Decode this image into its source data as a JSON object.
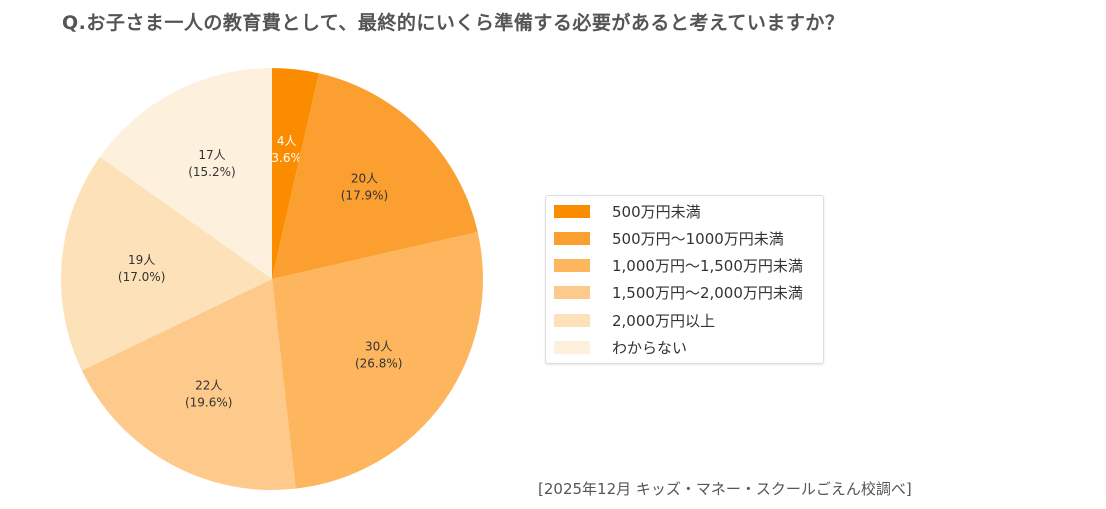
{
  "title": "Q.お子さま一人の教育費として、最終的にいくら準備する必要があると考えていますか？",
  "source": "[2025年12月 キッズ・マネー・スクールごえん校調べ]",
  "chart_data": {
    "type": "pie",
    "title": "Q.お子さま一人の教育費として、最終的にいくら準備する必要があると考えていますか？",
    "legend_position": "right",
    "slices": [
      {
        "label": "500万円未満",
        "count": 4,
        "count_label": "4人",
        "percent": 3.6,
        "percent_label": "(3.6%)",
        "color": "#fb8c00"
      },
      {
        "label": "500万円〜1000万円未満",
        "count": 20,
        "count_label": "20人",
        "percent": 17.9,
        "percent_label": "(17.9%)",
        "color": "#fba030"
      },
      {
        "label": "1,000万円〜1,500万円未満",
        "count": 30,
        "count_label": "30人",
        "percent": 26.8,
        "percent_label": "(26.8%)",
        "color": "#fdb65d"
      },
      {
        "label": "1,500万円〜2,000万円未満",
        "count": 22,
        "count_label": "22人",
        "percent": 19.6,
        "percent_label": "(19.6%)",
        "color": "#fdca8c"
      },
      {
        "label": "2,000万円以上",
        "count": 19,
        "count_label": "19人",
        "percent": 17.0,
        "percent_label": "(17.0%)",
        "color": "#fde1b8"
      },
      {
        "label": "わからない",
        "count": 17,
        "count_label": "17人",
        "percent": 15.2,
        "percent_label": "(15.2%)",
        "color": "#fdf1de"
      }
    ]
  }
}
